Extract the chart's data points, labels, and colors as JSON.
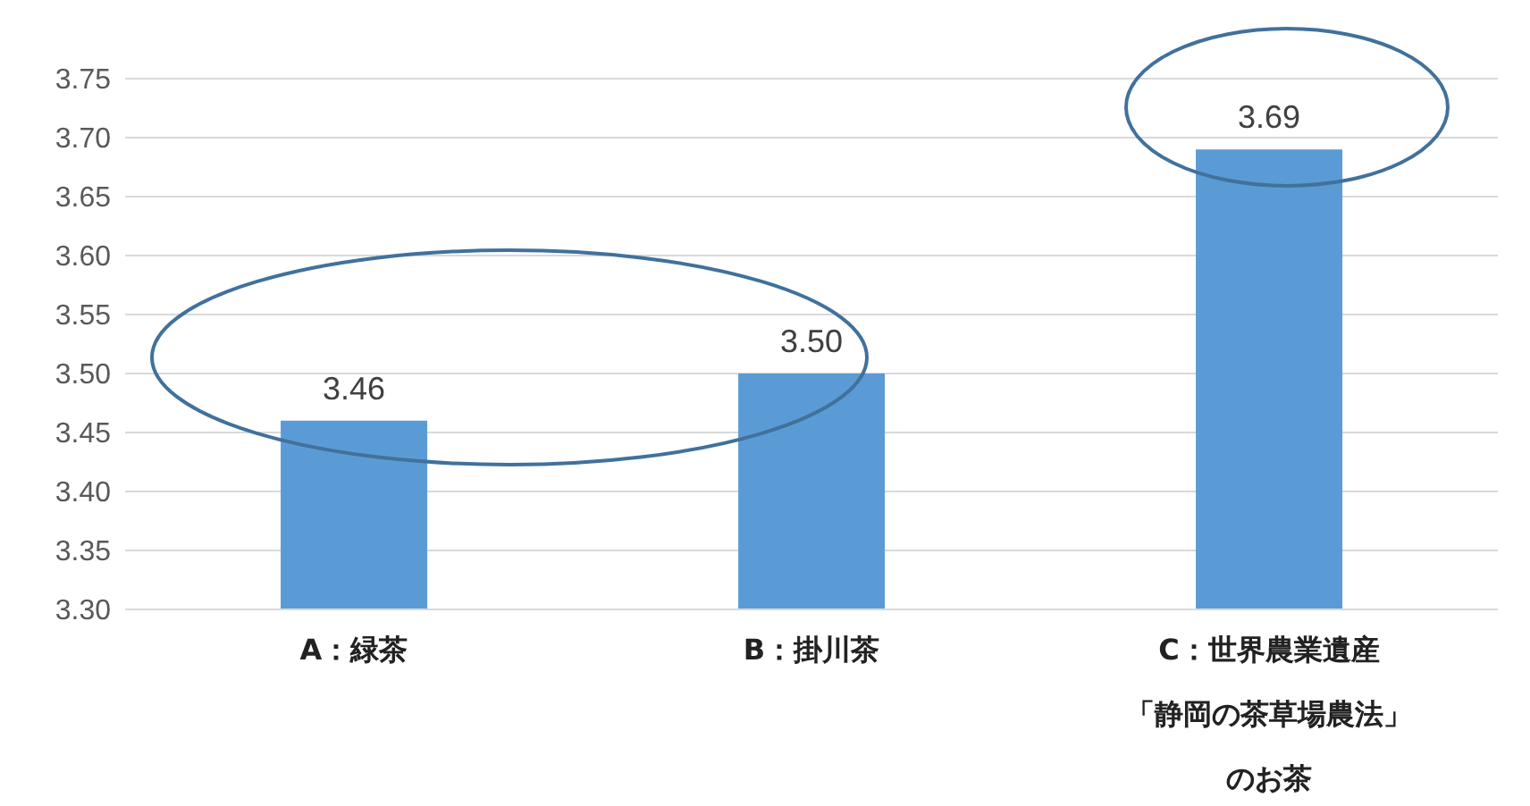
{
  "chart_data": {
    "type": "bar",
    "categories": [
      "A：緑茶",
      "B：掛川茶",
      "C：世界農業遺産「静岡の茶草場農法」のお茶"
    ],
    "values": [
      3.46,
      3.5,
      3.69
    ],
    "value_labels": [
      "3.46",
      "3.50",
      "3.69"
    ],
    "color": "#5b9bd5",
    "ylim": [
      3.3,
      3.75
    ],
    "yticks": [
      {
        "value": 3.3,
        "label": "3.30"
      },
      {
        "value": 3.35,
        "label": "3.35"
      },
      {
        "value": 3.4,
        "label": "3.40"
      },
      {
        "value": 3.45,
        "label": "3.45"
      },
      {
        "value": 3.5,
        "label": "3.50"
      },
      {
        "value": 3.55,
        "label": "3.55"
      },
      {
        "value": 3.6,
        "label": "3.60"
      },
      {
        "value": 3.65,
        "label": "3.65"
      },
      {
        "value": 3.7,
        "label": "3.70"
      },
      {
        "value": 3.75,
        "label": "3.75"
      }
    ],
    "grid": "y",
    "legend": false
  }
}
